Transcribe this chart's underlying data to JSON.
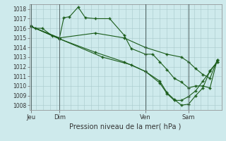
{
  "xlabel": "Pression niveau de la mer( hPa )",
  "bg_color": "#ceeaec",
  "grid_color": "#a8c8ca",
  "line_color": "#1a5c1a",
  "ylim": [
    1007.5,
    1018.5
  ],
  "yticks": [
    1008,
    1009,
    1010,
    1011,
    1012,
    1013,
    1014,
    1015,
    1016,
    1017,
    1018
  ],
  "xtick_labels": [
    "Jeu",
    "Dim",
    "Ven",
    "Sam"
  ],
  "xtick_positions": [
    0.0,
    2.0,
    8.0,
    11.0
  ],
  "xlim": [
    -0.1,
    13.3
  ],
  "lines": [
    {
      "x": [
        0.0,
        0.3,
        0.8,
        1.5,
        2.0,
        2.3,
        2.7,
        3.3,
        3.8,
        4.5,
        5.5,
        6.5,
        7.0,
        8.0,
        8.5,
        9.0,
        9.5,
        10.0,
        10.5,
        11.0,
        11.5,
        12.0,
        12.5,
        13.0
      ],
      "y": [
        1016.2,
        1016.0,
        1016.0,
        1015.2,
        1015.0,
        1017.1,
        1017.2,
        1018.2,
        1017.1,
        1017.0,
        1017.0,
        1015.3,
        1013.9,
        1013.3,
        1013.3,
        1012.5,
        1011.7,
        1010.8,
        1010.4,
        1009.8,
        1010.0,
        1010.0,
        1009.8,
        1012.7
      ],
      "marker": "+"
    },
    {
      "x": [
        0.0,
        2.0,
        4.5,
        6.5,
        8.0,
        9.5,
        10.5,
        11.0,
        11.5,
        12.0,
        12.5,
        13.0
      ],
      "y": [
        1016.2,
        1015.0,
        1015.5,
        1015.0,
        1014.0,
        1013.3,
        1013.0,
        1012.5,
        1011.8,
        1011.2,
        1010.8,
        1012.7
      ],
      "marker": "+"
    },
    {
      "x": [
        0.0,
        2.0,
        4.5,
        6.5,
        8.0,
        9.0,
        9.5,
        10.0,
        10.5,
        11.0,
        11.5,
        12.0,
        12.5,
        13.0
      ],
      "y": [
        1016.2,
        1014.9,
        1013.5,
        1012.5,
        1011.5,
        1010.5,
        1009.3,
        1008.6,
        1008.0,
        1008.1,
        1009.0,
        1009.8,
        1011.6,
        1012.5
      ],
      "marker": "+"
    },
    {
      "x": [
        0.0,
        2.0,
        5.0,
        7.0,
        8.0,
        9.0,
        9.5,
        10.0,
        10.5,
        11.0,
        11.5,
        12.0,
        12.5,
        13.0
      ],
      "y": [
        1016.2,
        1014.9,
        1013.0,
        1012.2,
        1011.5,
        1010.3,
        1009.2,
        1008.5,
        1008.5,
        1008.9,
        1009.5,
        1010.5,
        1011.5,
        1012.5
      ],
      "marker": "+"
    }
  ]
}
